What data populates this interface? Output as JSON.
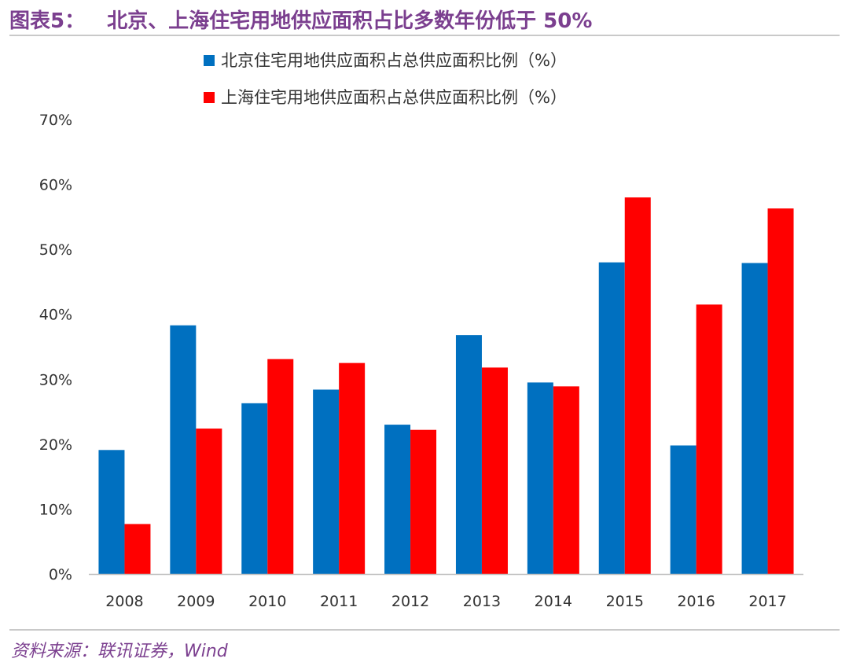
{
  "header": {
    "fig_label": "图表5：",
    "fig_title": "北京、上海住宅用地供应面积占比多数年份低于 50%"
  },
  "footer": {
    "source": "资料来源：联讯证券，Wind"
  },
  "colors": {
    "beijing": "#0070C0",
    "shanghai": "#FF0000",
    "title": "#7B3F8F"
  },
  "chart_data": {
    "type": "bar",
    "title": "",
    "xlabel": "",
    "ylabel": "",
    "ylim": [
      0,
      70
    ],
    "yticks": [
      "0%",
      "10%",
      "20%",
      "30%",
      "40%",
      "50%",
      "60%",
      "70%"
    ],
    "grid": false,
    "legend_position": "top",
    "categories": [
      "2008",
      "2009",
      "2010",
      "2011",
      "2012",
      "2013",
      "2014",
      "2015",
      "2016",
      "2017"
    ],
    "series": [
      {
        "name": "北京住宅用地供应面积占总供应面积比例（%）",
        "color": "#0070C0",
        "values": [
          19.1,
          38.3,
          26.3,
          28.4,
          23.0,
          36.8,
          29.5,
          48.0,
          19.8,
          47.9
        ]
      },
      {
        "name": "上海住宅用地供应面积占总供应面积比例（%）",
        "color": "#FF0000",
        "values": [
          7.7,
          22.4,
          33.1,
          32.5,
          22.2,
          31.8,
          28.9,
          58.0,
          41.5,
          56.3
        ]
      }
    ]
  }
}
